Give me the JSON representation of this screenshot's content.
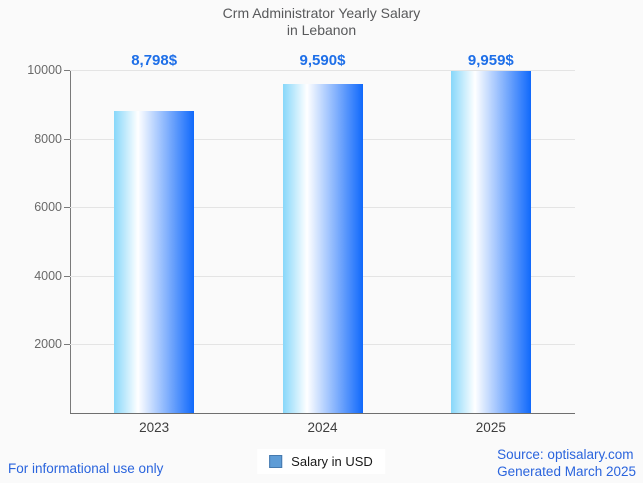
{
  "title": {
    "line1": "Crm Administrator Yearly Salary",
    "line2": "in Lebanon"
  },
  "chart_data": {
    "type": "bar",
    "title": "Crm Administrator Yearly Salary in Lebanon",
    "categories": [
      "2023",
      "2024",
      "2025"
    ],
    "series": [
      {
        "name": "Salary in USD",
        "values": [
          8798,
          9590,
          9959
        ]
      }
    ],
    "value_labels": [
      "8,798$",
      "9,590$",
      "9,959$"
    ],
    "xlabel": "",
    "ylabel": "",
    "ylim": [
      0,
      10000
    ],
    "yticks": [
      2000,
      4000,
      6000,
      8000,
      10000
    ],
    "grid": "horizontal-only",
    "legend_position": "bottom-center",
    "bar_gradient": [
      "#87d7fa",
      "#ffffff",
      "#1069fb"
    ]
  },
  "colors": {
    "background": "#fafafa",
    "title_text": "#58595b",
    "value_label_text": "#1e6fe8",
    "axis_line": "#7a7a7a",
    "gridline": "#e4e4e4",
    "y_label_text": "#696969",
    "x_label_text": "#3d3d3d",
    "legend_swatch_fill": "#5e9cd6",
    "legend_swatch_border": "#4579ae",
    "footer_text": "#2a64dd"
  },
  "footer": {
    "disclaimer": "For informational use only",
    "source": "Source: optisalary.com",
    "generated": "Generated March 2025"
  }
}
